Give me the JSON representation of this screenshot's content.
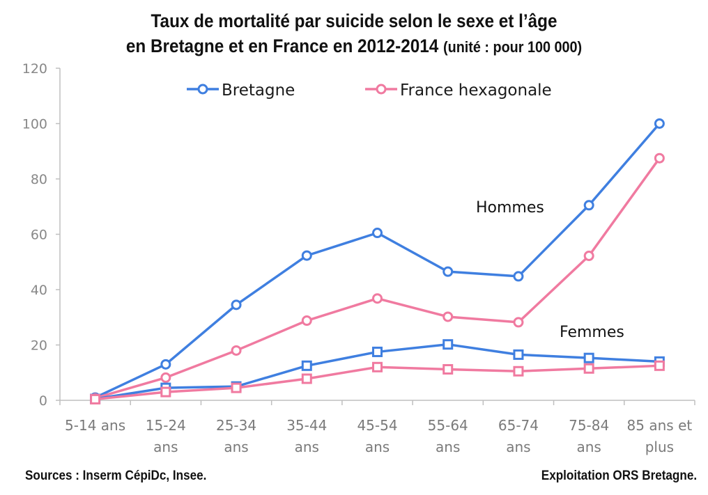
{
  "chart_data": {
    "type": "line",
    "title_line1": "Taux de mortalité par suicide selon le sexe et l’âge",
    "title_line2": "en Bretagne et en France en 2012-2014",
    "title_unit": "(unité : pour 100 000)",
    "categories": [
      [
        "5-14 ans"
      ],
      [
        "15-24",
        "ans"
      ],
      [
        "25-34",
        "ans"
      ],
      [
        "35-44",
        "ans"
      ],
      [
        "45-54",
        "ans"
      ],
      [
        "55-64",
        "ans"
      ],
      [
        "65-74",
        "ans"
      ],
      [
        "75-84",
        "ans"
      ],
      [
        "85 ans et",
        "plus"
      ]
    ],
    "ylim": [
      0,
      120
    ],
    "yticks": [
      0,
      20,
      40,
      60,
      80,
      100,
      120
    ],
    "grid": false,
    "legend_placement": "top",
    "legend": [
      {
        "label": "Bretagne",
        "color": "#3F7FE0"
      },
      {
        "label": "France hexagonale",
        "color": "#F07AA0"
      }
    ],
    "series": [
      {
        "group": "Hommes",
        "region": "Bretagne",
        "color": "#3F7FE0",
        "marker": "circle",
        "values": [
          1,
          13,
          34.5,
          52.3,
          60.5,
          46.5,
          44.8,
          70.5,
          100
        ]
      },
      {
        "group": "Hommes",
        "region": "France hexagonale",
        "color": "#F07AA0",
        "marker": "circle",
        "values": [
          0.8,
          8.2,
          18,
          28.8,
          36.8,
          30.2,
          28.2,
          52.2,
          87.5
        ]
      },
      {
        "group": "Femmes",
        "region": "Bretagne",
        "color": "#3F7FE0",
        "marker": "square",
        "values": [
          0.5,
          4.5,
          5,
          12.5,
          17.5,
          20.2,
          16.5,
          15.3,
          14
        ]
      },
      {
        "group": "Femmes",
        "region": "France hexagonale",
        "color": "#F07AA0",
        "marker": "square",
        "values": [
          0.4,
          3,
          4.5,
          7.8,
          12,
          11.2,
          10.5,
          11.5,
          12.5
        ]
      }
    ],
    "annotations": [
      {
        "text": "Hommes"
      },
      {
        "text": "Femmes"
      }
    ],
    "source": "Sources : Inserm CépiDc, Insee.",
    "credit": "Exploitation ORS Bretagne."
  }
}
